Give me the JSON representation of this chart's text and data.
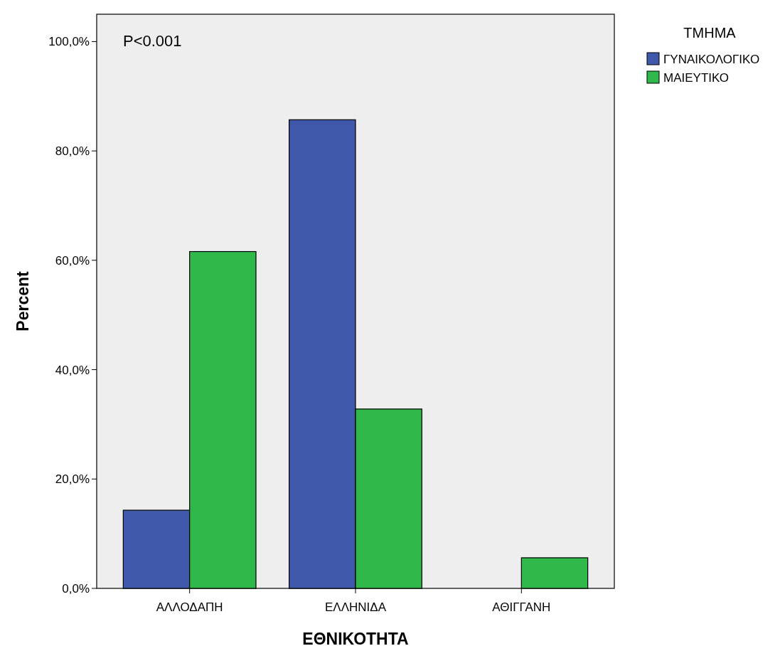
{
  "chart_data": {
    "type": "bar",
    "xlabel": "ΕΘΝΙΚΟΤΗΤΑ",
    "ylabel": "Percent",
    "legend_title": "ΤΜΗΜΑ",
    "annotations": [
      "P<0.001"
    ],
    "categories": [
      "ΑΛΛΟΔΑΠΗ",
      "ΕΛΛΗΝΙΔΑ",
      "ΑΘΙΓΓΑΝΗ"
    ],
    "series": [
      {
        "name": "ΓΥΝΑΙΚΟΛΟΓΙΚΟ",
        "color": "#3f58aa",
        "values": [
          14.3,
          85.7,
          0
        ]
      },
      {
        "name": "ΜΑΙΕΥΤΙΚΟ",
        "color": "#30b84a",
        "values": [
          61.6,
          32.8,
          5.6
        ]
      }
    ],
    "ylim": [
      0,
      105
    ],
    "yticks": [
      {
        "value": 0,
        "label": "0,0%"
      },
      {
        "value": 20,
        "label": "20,0%"
      },
      {
        "value": 40,
        "label": "40,0%"
      },
      {
        "value": 60,
        "label": "60,0%"
      },
      {
        "value": 80,
        "label": "80,0%"
      },
      {
        "value": 100,
        "label": "100,0%"
      }
    ],
    "legend": "right",
    "grid": false
  }
}
